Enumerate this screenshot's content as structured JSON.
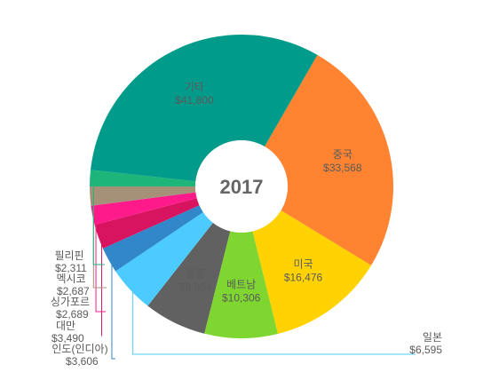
{
  "chart_data": {
    "type": "pie",
    "title": "2017",
    "slices": [
      {
        "label": "중국",
        "value_text": "$33,568",
        "value": 33568,
        "color": "#FF8330",
        "label_pos": "inside"
      },
      {
        "label": "미국",
        "value_text": "$16,476",
        "value": 16476,
        "color": "#FFD200",
        "label_pos": "inside"
      },
      {
        "label": "베트남",
        "value_text": "$10,306",
        "value": 10306,
        "color": "#7FD631",
        "label_pos": "inside"
      },
      {
        "label": "홍콩",
        "value_text": "$8,804",
        "value": 8804,
        "color": "#616161",
        "label_pos": "inside"
      },
      {
        "label": "일본",
        "value_text": "$6,595",
        "value": 6595,
        "color": "#4BCBFF",
        "label_pos": "outside"
      },
      {
        "label": "인도(인디아)",
        "value_text": "$3,606",
        "value": 3606,
        "color": "#3287CA",
        "label_pos": "outside"
      },
      {
        "label": "대만",
        "value_text": "$3,490",
        "value": 3490,
        "color": "#D81460",
        "label_pos": "outside"
      },
      {
        "label": "싱가포르",
        "value_text": "$2,689",
        "value": 2689,
        "color": "#FF1A8C",
        "label_pos": "outside"
      },
      {
        "label": "멕시코",
        "value_text": "$2,687",
        "value": 2687,
        "color": "#A49177",
        "label_pos": "outside"
      },
      {
        "label": "필리핀",
        "value_text": "$2,311",
        "value": 2311,
        "color": "#1EB57A",
        "label_pos": "outside"
      },
      {
        "label": "기타",
        "value_text": "$41,800",
        "value": 41800,
        "color": "#009B8A",
        "label_pos": "inside"
      }
    ]
  }
}
